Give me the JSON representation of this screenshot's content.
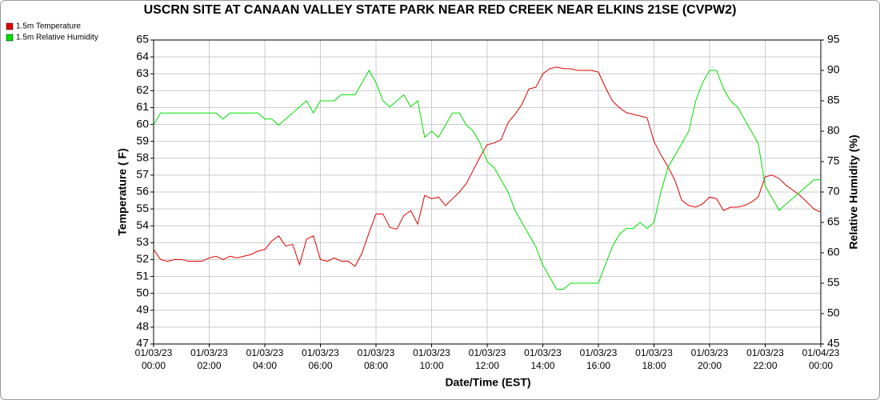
{
  "chart_data": {
    "type": "line",
    "title": "USCRN SITE AT CANAAN VALLEY STATE PARK NEAR RED CREEK NEAR ELKINS 21SE (CVPW2)",
    "x_label": "Date/Time (EST)",
    "y_label": "Temperature ( F)",
    "y2_label": "Relative Humidity (%)",
    "x": [
      0,
      0.25,
      0.5,
      0.75,
      1,
      1.25,
      1.5,
      1.75,
      2,
      2.25,
      2.5,
      2.75,
      3,
      3.25,
      3.5,
      3.75,
      4,
      4.25,
      4.5,
      4.75,
      5,
      5.25,
      5.5,
      5.75,
      6,
      6.25,
      6.5,
      6.75,
      7,
      7.25,
      7.5,
      7.75,
      8,
      8.25,
      8.5,
      8.75,
      9,
      9.25,
      9.5,
      9.75,
      10,
      10.25,
      10.5,
      10.75,
      11,
      11.25,
      11.5,
      11.75,
      12,
      12.25,
      12.5,
      12.75,
      13,
      13.25,
      13.5,
      13.75,
      14,
      14.25,
      14.5,
      14.75,
      15,
      15.25,
      15.5,
      15.75,
      16,
      16.25,
      16.5,
      16.75,
      17,
      17.25,
      17.5,
      17.75,
      18,
      18.25,
      18.5,
      18.75,
      19,
      19.25,
      19.5,
      19.75,
      20,
      20.25,
      20.5,
      20.75,
      21,
      21.25,
      21.5,
      21.75,
      22,
      22.25,
      22.5,
      22.75,
      23,
      23.25,
      23.5,
      23.75,
      24
    ],
    "series": [
      {
        "name": "1.5m Temperature",
        "color": "#e00000",
        "axis": "y",
        "values": [
          52.6,
          52.0,
          51.9,
          52.0,
          52.0,
          51.9,
          51.9,
          51.9,
          52.1,
          52.2,
          52.0,
          52.2,
          52.1,
          52.2,
          52.3,
          52.5,
          52.6,
          53.1,
          53.4,
          52.8,
          52.9,
          51.7,
          53.2,
          53.4,
          52.0,
          51.9,
          52.1,
          51.9,
          51.9,
          51.6,
          52.4,
          53.6,
          54.7,
          54.7,
          53.9,
          53.8,
          54.6,
          54.9,
          54.1,
          55.8,
          55.6,
          55.7,
          55.2,
          55.6,
          56.0,
          56.5,
          57.3,
          58.1,
          58.8,
          58.9,
          59.1,
          60.1,
          60.6,
          61.2,
          62.1,
          62.2,
          63.0,
          63.3,
          63.4,
          63.3,
          63.3,
          63.2,
          63.2,
          63.2,
          63.1,
          62.2,
          61.4,
          61.0,
          60.7,
          60.6,
          60.5,
          60.4,
          59.0,
          58.2,
          57.5,
          56.7,
          55.5,
          55.2,
          55.1,
          55.3,
          55.7,
          55.6,
          54.9,
          55.1,
          55.1,
          55.2,
          55.4,
          55.7,
          56.9,
          57.0,
          56.8,
          56.4,
          56.1,
          55.8,
          55.4,
          55.0,
          54.8
        ]
      },
      {
        "name": "1.5m Relative Humidity",
        "color": "#00e000",
        "axis": "y2",
        "values": [
          81,
          83,
          83,
          83,
          83,
          83,
          83,
          83,
          83,
          83,
          82,
          83,
          83,
          83,
          83,
          83,
          82,
          82,
          81,
          82,
          83,
          84,
          85,
          83,
          85,
          85,
          85,
          86,
          86,
          86,
          88,
          90,
          88,
          85,
          84,
          85,
          86,
          84,
          85,
          79,
          80,
          79,
          81,
          83,
          83,
          81,
          80,
          78,
          75,
          74,
          72,
          70,
          67,
          65,
          63,
          61,
          58,
          56,
          54,
          54,
          55,
          55,
          55,
          55,
          55,
          58,
          61,
          63,
          64,
          64,
          65,
          64,
          65,
          70,
          74,
          76,
          78,
          80,
          85,
          88,
          90,
          90,
          87,
          85,
          84,
          82,
          80,
          78,
          71,
          69,
          67,
          68,
          69,
          70,
          71,
          72,
          72
        ]
      }
    ],
    "xlim": [
      0,
      24
    ],
    "xticks": [
      {
        "value": 0,
        "label": "01/03/23 00:00"
      },
      {
        "value": 2,
        "label": "01/03/23 02:00"
      },
      {
        "value": 4,
        "label": "01/03/23 04:00"
      },
      {
        "value": 6,
        "label": "01/03/23 06:00"
      },
      {
        "value": 8,
        "label": "01/03/23 08:00"
      },
      {
        "value": 10,
        "label": "01/03/23 10:00"
      },
      {
        "value": 12,
        "label": "01/03/23 12:00"
      },
      {
        "value": 14,
        "label": "01/03/23 14:00"
      },
      {
        "value": 16,
        "label": "01/03/23 16:00"
      },
      {
        "value": 18,
        "label": "01/03/23 18:00"
      },
      {
        "value": 20,
        "label": "01/03/23 20:00"
      },
      {
        "value": 22,
        "label": "01/03/23 22:00"
      },
      {
        "value": 24,
        "label": "01/04/23 00:00"
      }
    ],
    "ylim": [
      47,
      65
    ],
    "yticks": [
      47,
      48,
      49,
      50,
      51,
      52,
      53,
      54,
      55,
      56,
      57,
      58,
      59,
      60,
      61,
      62,
      63,
      64,
      65
    ],
    "y2lim": [
      45,
      95
    ],
    "y2ticks": [
      45,
      50,
      55,
      60,
      65,
      70,
      75,
      80,
      85,
      90,
      95
    ],
    "grid": true,
    "legend": "top-left"
  }
}
